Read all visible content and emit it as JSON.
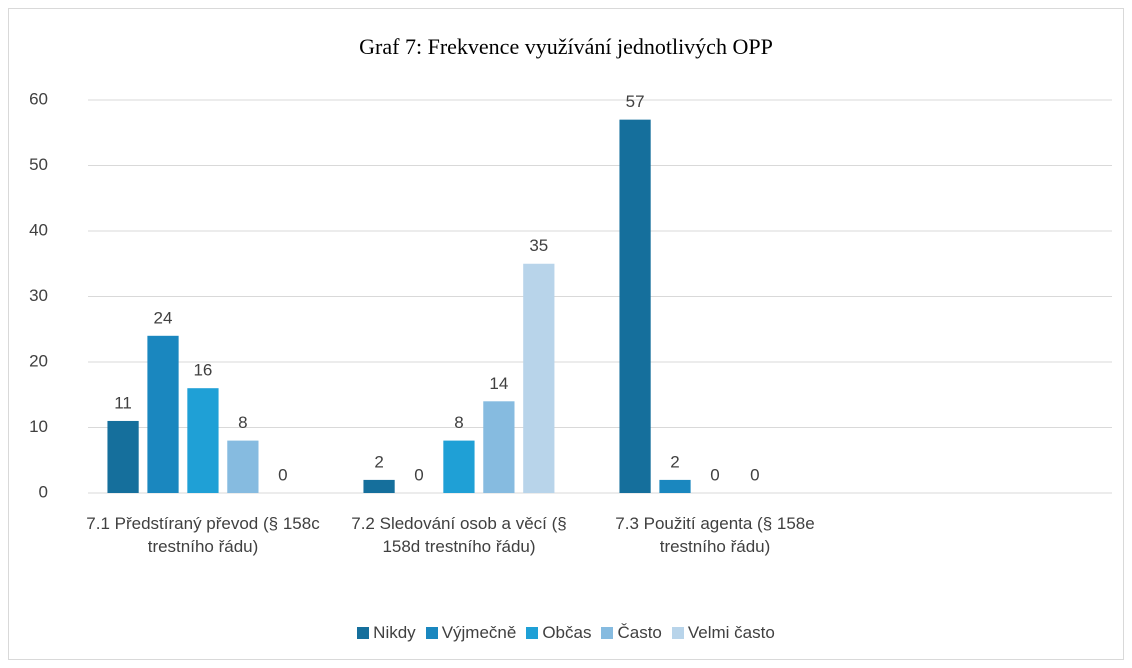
{
  "chart_data": {
    "type": "bar",
    "title": "Graf 7: Frekvence využívání jednotlivých OPP",
    "categories": [
      "7.1 Předstíraný převod (§ 158c trestního řádu)",
      "7.2 Sledování osob a věcí (§ 158d trestního řádu)",
      "7.3 Použití agenta (§ 158e trestního řádu)",
      null
    ],
    "series": [
      {
        "name": "Nikdy",
        "color": "#156f9c",
        "values": [
          11,
          2,
          57,
          null
        ]
      },
      {
        "name": "Výjmečně",
        "color": "#1a87bf",
        "values": [
          24,
          0,
          2,
          null
        ]
      },
      {
        "name": "Občas",
        "color": "#1fa0d6",
        "values": [
          16,
          8,
          0,
          null
        ]
      },
      {
        "name": "Často",
        "color": "#86bbe0",
        "values": [
          8,
          14,
          0,
          null
        ]
      },
      {
        "name": "Velmi často",
        "color": "#b8d4ea",
        "values": [
          0,
          35,
          null,
          null
        ]
      }
    ],
    "ylim": [
      0,
      60
    ],
    "yticks": [
      0,
      10,
      20,
      30,
      40,
      50,
      60
    ],
    "grid": true,
    "legend": "bottom"
  }
}
